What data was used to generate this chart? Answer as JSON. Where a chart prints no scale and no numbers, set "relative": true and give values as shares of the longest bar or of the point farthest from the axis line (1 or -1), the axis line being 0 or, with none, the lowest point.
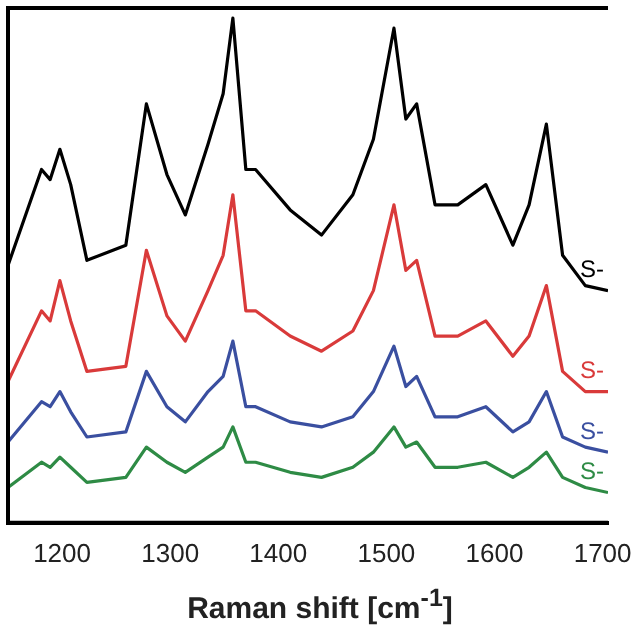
{
  "chart_data": {
    "type": "line",
    "xlabel": "Raman shift [cm$^{-1}$]",
    "relative": true,
    "xlim": [
      1150,
      1705
    ],
    "xticks": [
      1200,
      1300,
      1400,
      1500,
      1600,
      1700
    ],
    "grid": false,
    "legend": false,
    "marker": "none",
    "line_style": "solid",
    "x": [
      1150,
      1181,
      1189,
      1198,
      1208,
      1223,
      1259,
      1278,
      1297,
      1314,
      1335,
      1349,
      1358,
      1370,
      1379,
      1411,
      1440,
      1469,
      1488,
      1507,
      1518,
      1528,
      1545,
      1566,
      1592,
      1617,
      1632,
      1648,
      1663,
      1684,
      1705
    ],
    "series": [
      {
        "name": "S-",
        "color": "#000000",
        "values": [
          0.51,
          0.7,
          0.68,
          0.74,
          0.67,
          0.52,
          0.55,
          0.83,
          0.69,
          0.61,
          0.75,
          0.85,
          1.0,
          0.7,
          0.7,
          0.62,
          0.57,
          0.65,
          0.76,
          0.98,
          0.8,
          0.83,
          0.63,
          0.63,
          0.67,
          0.55,
          0.63,
          0.79,
          0.53,
          0.47,
          0.46
        ]
      },
      {
        "name": "S-",
        "color": "#d93a3a",
        "values": [
          0.28,
          0.42,
          0.4,
          0.48,
          0.4,
          0.3,
          0.31,
          0.54,
          0.41,
          0.36,
          0.46,
          0.53,
          0.65,
          0.42,
          0.42,
          0.37,
          0.34,
          0.38,
          0.46,
          0.63,
          0.5,
          0.52,
          0.37,
          0.37,
          0.4,
          0.33,
          0.37,
          0.47,
          0.3,
          0.26,
          0.26
        ]
      },
      {
        "name": "S-",
        "color": "#3a4fa0",
        "values": [
          0.16,
          0.24,
          0.23,
          0.26,
          0.22,
          0.17,
          0.18,
          0.3,
          0.23,
          0.2,
          0.26,
          0.29,
          0.36,
          0.23,
          0.23,
          0.2,
          0.19,
          0.21,
          0.26,
          0.35,
          0.27,
          0.29,
          0.21,
          0.21,
          0.23,
          0.18,
          0.2,
          0.26,
          0.17,
          0.15,
          0.14
        ]
      },
      {
        "name": "S-",
        "color": "#2e8b45",
        "values": [
          0.07,
          0.12,
          0.11,
          0.13,
          0.11,
          0.08,
          0.09,
          0.15,
          0.12,
          0.1,
          0.13,
          0.15,
          0.19,
          0.12,
          0.12,
          0.1,
          0.09,
          0.11,
          0.14,
          0.19,
          0.15,
          0.16,
          0.11,
          0.11,
          0.12,
          0.09,
          0.11,
          0.14,
          0.09,
          0.07,
          0.06
        ]
      }
    ]
  }
}
